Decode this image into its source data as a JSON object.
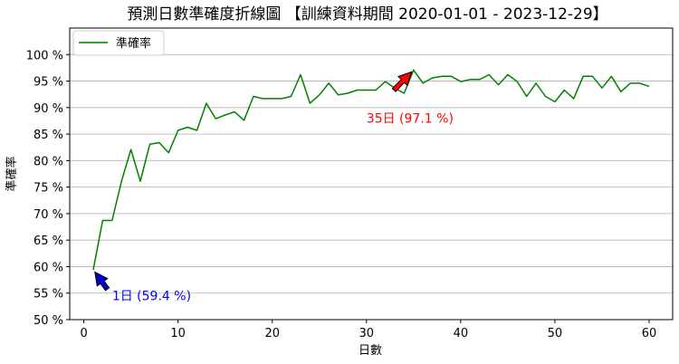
{
  "chart_data": {
    "type": "line",
    "title": "預測日數準確度折線圖 【訓練資料期間 2020-01-01 - 2023-12-29】",
    "xlabel": "日數",
    "ylabel": "準確率",
    "xlim": [
      -1.5,
      62.5
    ],
    "ylim": [
      50,
      105
    ],
    "xticks": [
      0,
      10,
      20,
      30,
      40,
      50,
      60
    ],
    "yticks": [
      50,
      55,
      60,
      65,
      70,
      75,
      80,
      85,
      90,
      95,
      100
    ],
    "ytick_suffix": " %",
    "grid": "horizontal",
    "legend_position": "top-left",
    "series": [
      {
        "name": "準確率",
        "color": "#008000",
        "x": [
          1,
          2,
          3,
          4,
          5,
          6,
          7,
          8,
          9,
          10,
          11,
          12,
          13,
          14,
          15,
          16,
          17,
          18,
          19,
          20,
          21,
          22,
          23,
          24,
          25,
          26,
          27,
          28,
          29,
          30,
          31,
          32,
          33,
          34,
          35,
          36,
          37,
          38,
          39,
          40,
          41,
          42,
          43,
          44,
          45,
          46,
          47,
          48,
          49,
          50,
          51,
          52,
          53,
          54,
          55,
          56,
          57,
          58,
          59,
          60
        ],
        "y": [
          59.4,
          68.7,
          68.7,
          76.1,
          82.1,
          76.1,
          83.1,
          83.4,
          81.5,
          85.7,
          86.3,
          85.7,
          90.8,
          87.9,
          88.6,
          89.2,
          87.6,
          92.1,
          91.7,
          91.7,
          91.7,
          92.1,
          96.2,
          90.8,
          92.4,
          94.6,
          92.4,
          92.7,
          93.3,
          93.3,
          93.3,
          94.9,
          93.7,
          92.7,
          97.1,
          94.6,
          95.6,
          95.9,
          95.9,
          94.9,
          95.3,
          95.3,
          96.2,
          94.3,
          96.2,
          94.9,
          92.1,
          94.6,
          92.1,
          91.1,
          93.3,
          91.7,
          95.9,
          95.9,
          93.7,
          95.9,
          93.0,
          94.6,
          94.6,
          94.0
        ]
      }
    ],
    "annotations": [
      {
        "text": "1日 (59.4 %)",
        "x": 1,
        "y": 59.4,
        "text_x": 3,
        "text_y": 54.5,
        "color": "#0000ff",
        "arrow_color": "#0000cc"
      },
      {
        "text": "35日 (97.1 %)",
        "x": 35,
        "y": 97.1,
        "text_x": 30,
        "text_y": 88,
        "color": "#ff0000",
        "arrow_color": "#ff0000"
      }
    ]
  }
}
